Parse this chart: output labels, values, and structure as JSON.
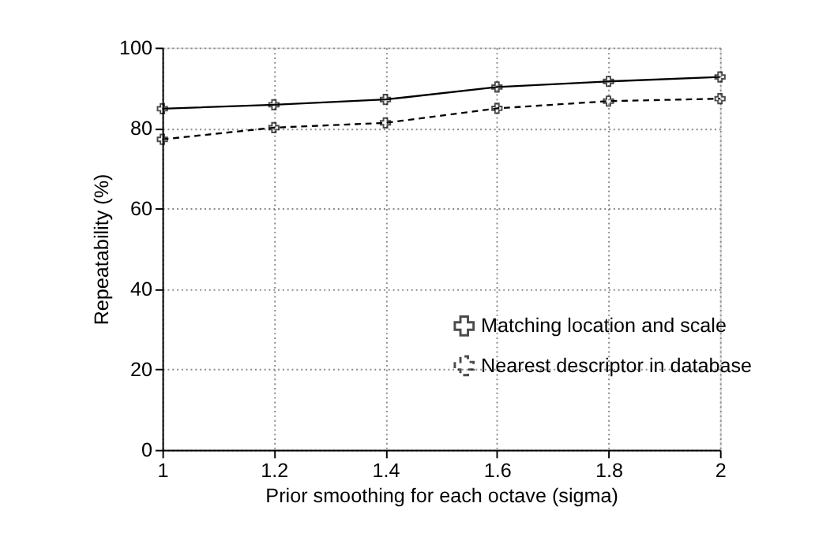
{
  "chart_data": {
    "type": "line",
    "xlabel": "Prior smoothing for each octave (sigma)",
    "ylabel": "Repeatability (%)",
    "x": [
      1,
      1.2,
      1.4,
      1.6,
      1.8,
      2
    ],
    "series": [
      {
        "name": "Matching location and scale",
        "color": "#000000",
        "line_style": "solid",
        "marker": "cross",
        "values": [
          84.8,
          85.8,
          87.1,
          90.2,
          91.6,
          92.7
        ]
      },
      {
        "name": "Nearest descriptor in database",
        "color": "#000000",
        "line_style": "dashed",
        "marker": "cross",
        "values": [
          77.2,
          80.1,
          81.3,
          84.9,
          86.7,
          87.3
        ]
      }
    ],
    "xlim": [
      1,
      2
    ],
    "xticks": [
      1,
      1.2,
      1.4,
      1.6,
      1.8,
      2
    ],
    "ylim": [
      0,
      100
    ],
    "yticks": [
      0,
      20,
      40,
      60,
      80,
      100
    ],
    "grid": true,
    "legend": "right"
  }
}
